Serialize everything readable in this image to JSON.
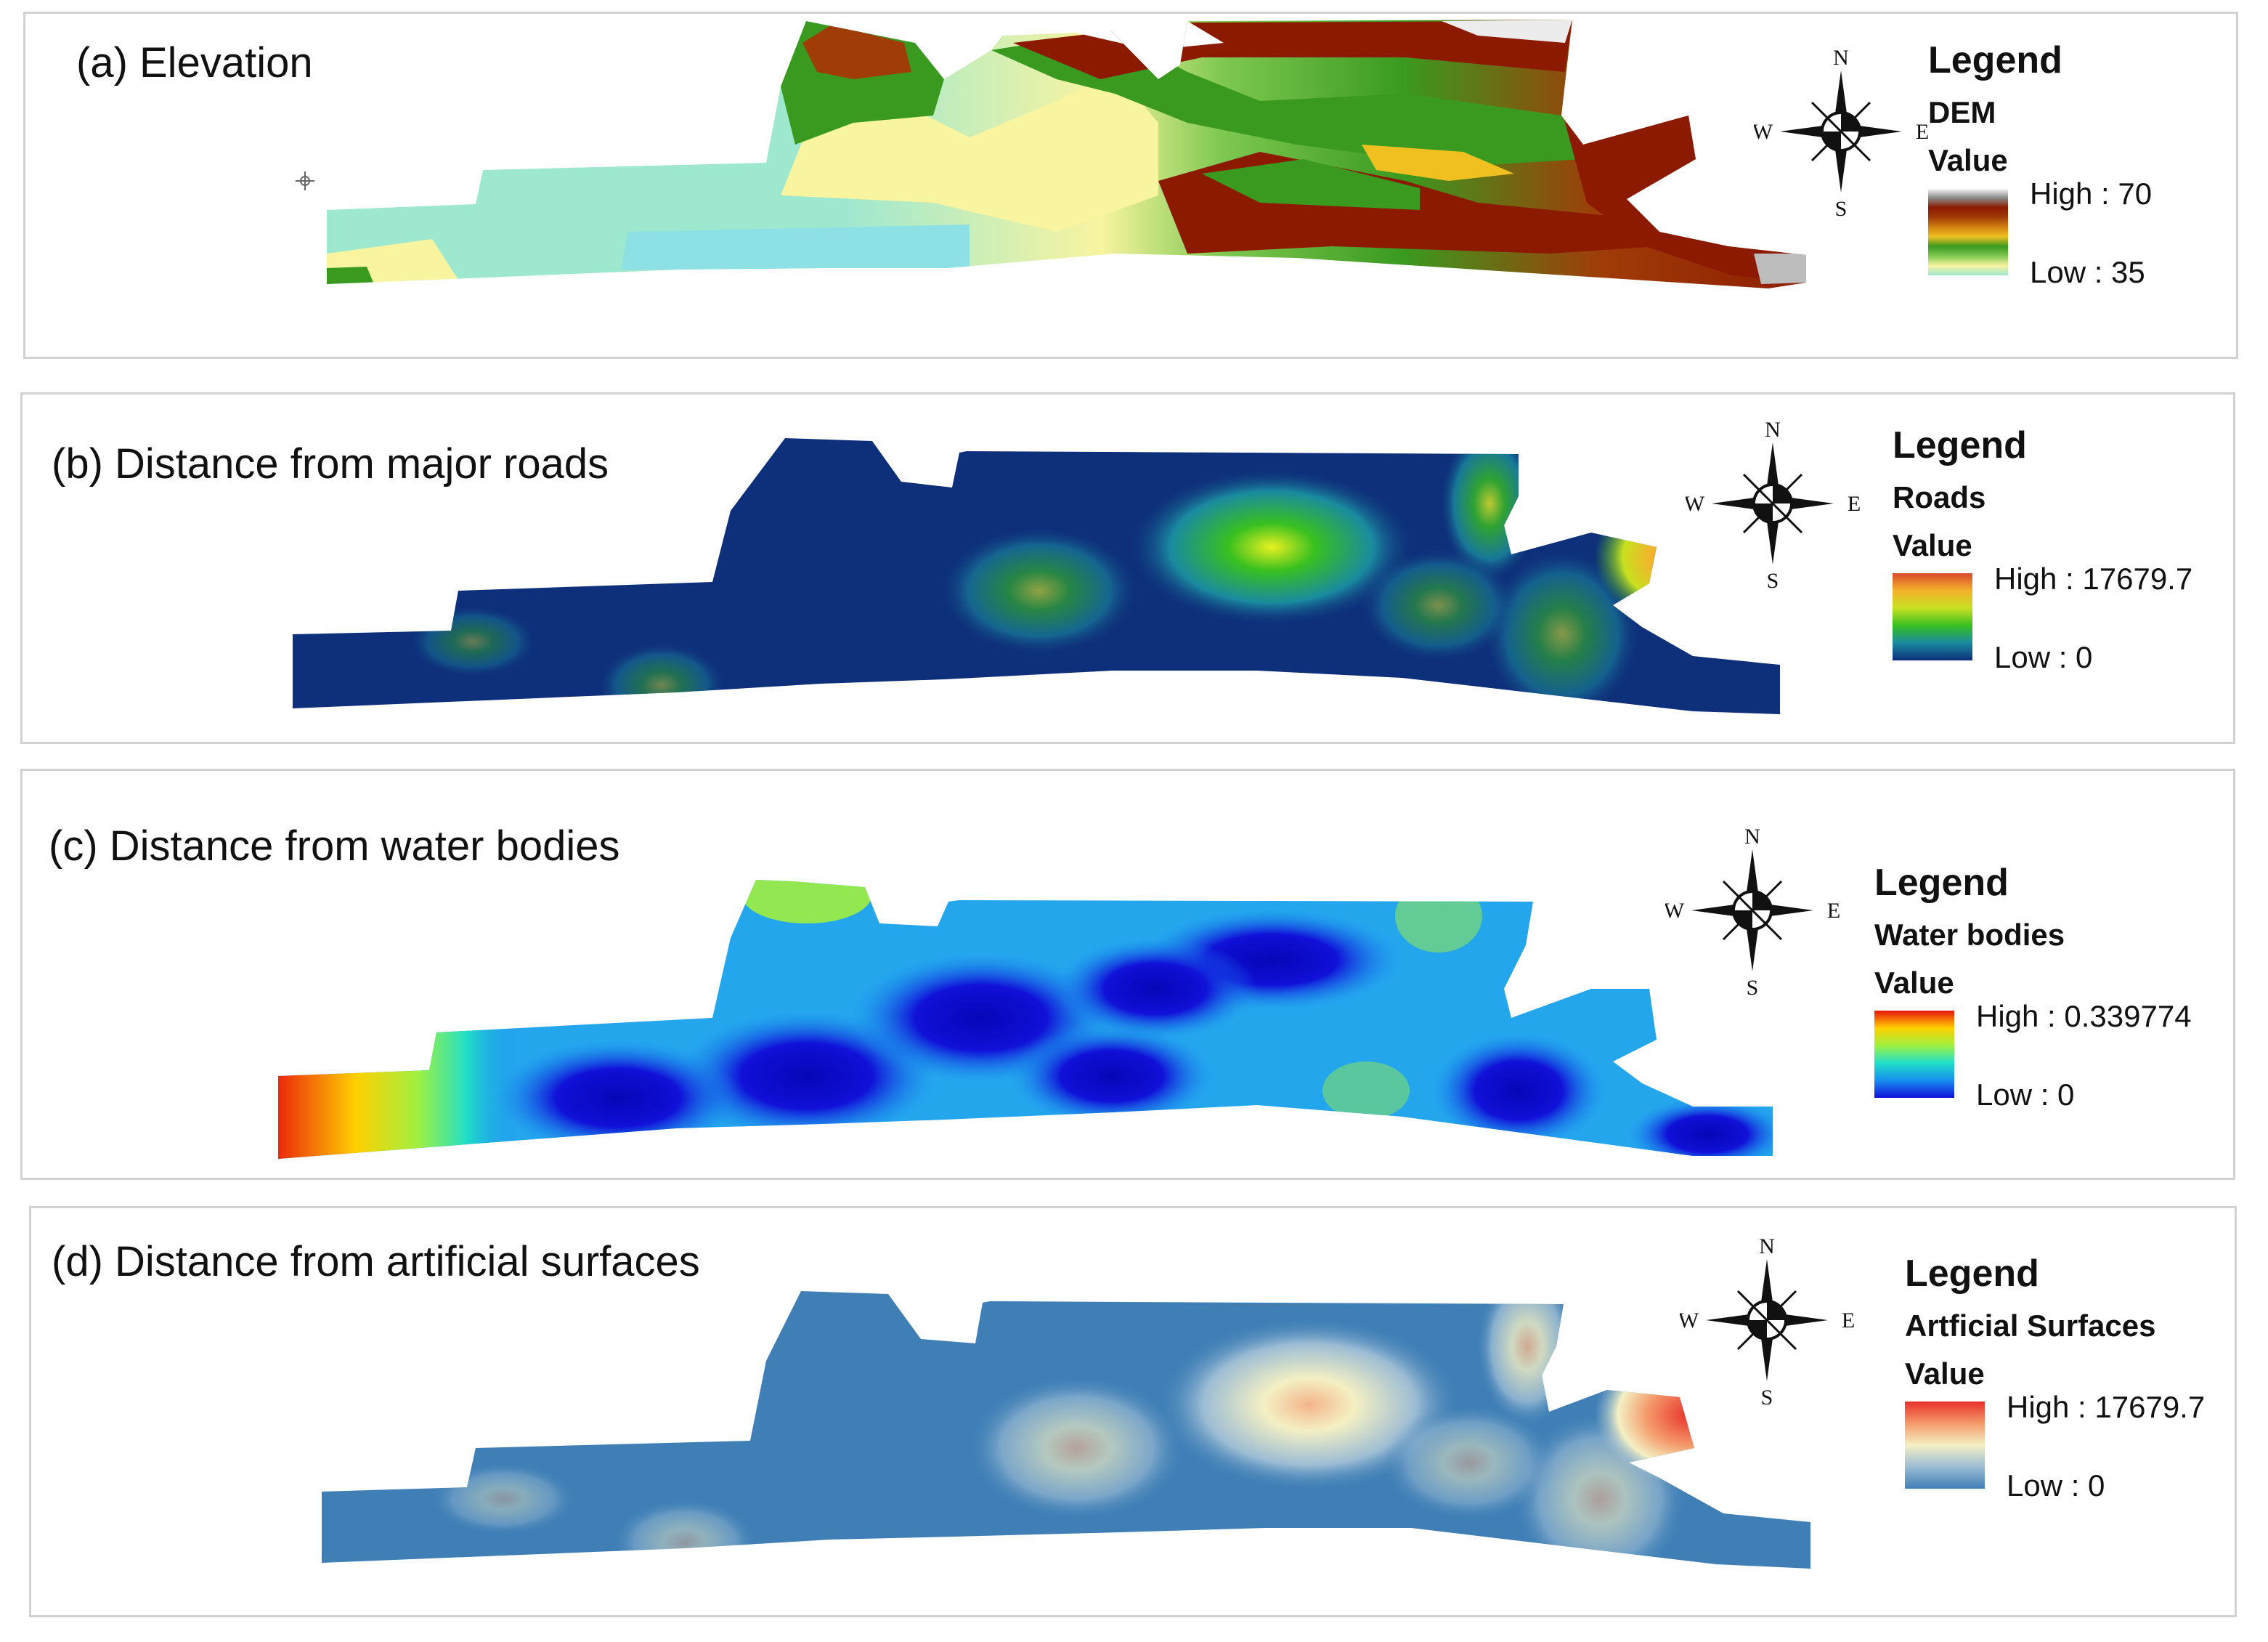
{
  "panels": [
    {
      "title": "(a) Elevation",
      "legend_title": "Legend",
      "layer": "DEM",
      "value_label": "Value",
      "high": "High : 70",
      "low": "Low : 35",
      "ramp_colors": [
        "#ffffff",
        "#8a8a8a",
        "#8b1a00",
        "#a03c08",
        "#d08010",
        "#f0c020",
        "#3a9a20",
        "#7ec850",
        "#f8f4a0",
        "#9ee8d0"
      ]
    },
    {
      "title": "(b) Distance from major roads",
      "legend_title": "Legend",
      "layer": "Roads",
      "value_label": "Value",
      "high": "High : 17679.7",
      "low": "Low : 0",
      "ramp_colors": [
        "#d84a2c",
        "#f4b22c",
        "#c8e020",
        "#38c020",
        "#1a8aa0",
        "#0e2f7a"
      ]
    },
    {
      "title": "(c) Distance from water bodies",
      "legend_title": "Legend",
      "layer": "Water bodies",
      "value_label": "Value",
      "high": "High : 0.339774",
      "low": "Low : 0",
      "ramp_colors": [
        "#e8160c",
        "#ffd000",
        "#a0f040",
        "#20e0c8",
        "#1890f0",
        "#1010d8"
      ]
    },
    {
      "title": "(d) Distance from artificial surfaces",
      "legend_title": "Legend",
      "layer": "Artficial Surfaces",
      "value_label": "Value",
      "high": "High : 17679.7",
      "low": "Low : 0",
      "ramp_colors": [
        "#e8302a",
        "#f49a6a",
        "#f4f0c4",
        "#9cbcd4",
        "#3f7fb6"
      ]
    }
  ],
  "compass": {
    "n": "N",
    "s": "S",
    "e": "E",
    "w": "W"
  }
}
